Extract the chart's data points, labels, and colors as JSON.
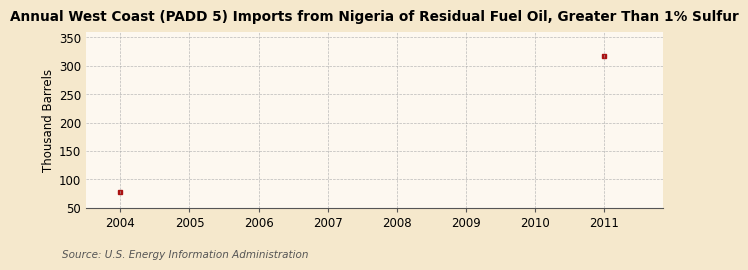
{
  "title": "Annual West Coast (PADD 5) Imports from Nigeria of Residual Fuel Oil, Greater Than 1% Sulfur",
  "ylabel": "Thousand Barrels",
  "source": "Source: U.S. Energy Information Administration",
  "years": [
    2004,
    2011
  ],
  "values": [
    77,
    318
  ],
  "xlim": [
    2003.5,
    2011.85
  ],
  "ylim": [
    50,
    360
  ],
  "yticks": [
    50,
    100,
    150,
    200,
    250,
    300,
    350
  ],
  "xticks": [
    2004,
    2005,
    2006,
    2007,
    2008,
    2009,
    2010,
    2011
  ],
  "background_color": "#f5e8cc",
  "plot_bg_color": "#fdf8f0",
  "marker_color": "#aa1111",
  "grid_color": "#aaaaaa",
  "title_fontsize": 9.8,
  "axis_fontsize": 8.5,
  "tick_fontsize": 8.5,
  "source_fontsize": 7.5
}
